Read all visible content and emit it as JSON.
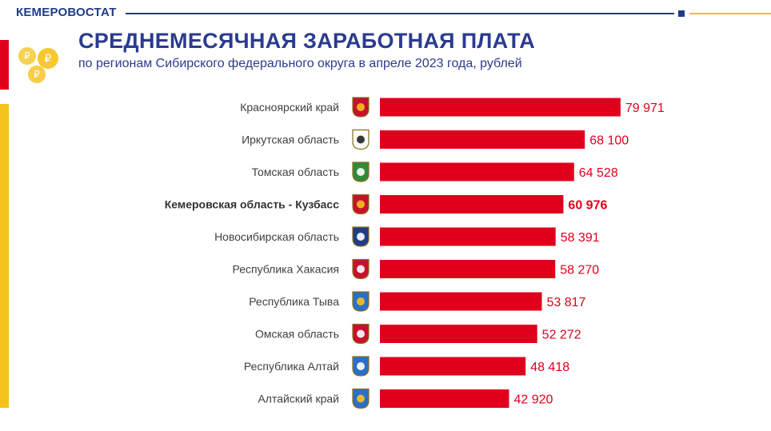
{
  "header": {
    "brand": "КЕМЕРОВОСТАТ",
    "title": "СРЕДНЕМЕСЯЧНАЯ ЗАРАБОТНАЯ ПЛАТА",
    "subtitle": "по регионам Сибирского федерального округа в апреле 2023 года, рублей"
  },
  "colors": {
    "bar": "#e0001b",
    "brand_blue": "#1f3c88",
    "accent_yellow": "#f6c21c"
  },
  "chart_data": {
    "type": "bar",
    "orientation": "horizontal",
    "categories": [
      "Красноярский край",
      "Иркутская область",
      "Томская область",
      "Кемеровская область - Кузбасс",
      "Новосибирская область",
      "Республика Хакасия",
      "Республика Тыва",
      "Омская область",
      "Республика Алтай",
      "Алтайский край"
    ],
    "values": [
      79971,
      68100,
      64528,
      60976,
      58391,
      58270,
      53817,
      52272,
      48418,
      42920
    ],
    "value_labels": [
      "79 971",
      "68 100",
      "64 528",
      "60 976",
      "58 391",
      "58 270",
      "53 817",
      "52 272",
      "48 418",
      "42 920"
    ],
    "highlight_index": 3,
    "category_icons": [
      "krasnoyarsk-coat-of-arms-icon",
      "irkutsk-coat-of-arms-icon",
      "tomsk-coat-of-arms-icon",
      "kemerovo-coat-of-arms-icon",
      "novosibirsk-coat-of-arms-icon",
      "khakassia-coat-of-arms-icon",
      "tuva-coat-of-arms-icon",
      "omsk-coat-of-arms-icon",
      "altai-republic-coat-of-arms-icon",
      "altai-krai-coat-of-arms-icon"
    ],
    "xlim": [
      0,
      80000
    ],
    "grid": false
  }
}
